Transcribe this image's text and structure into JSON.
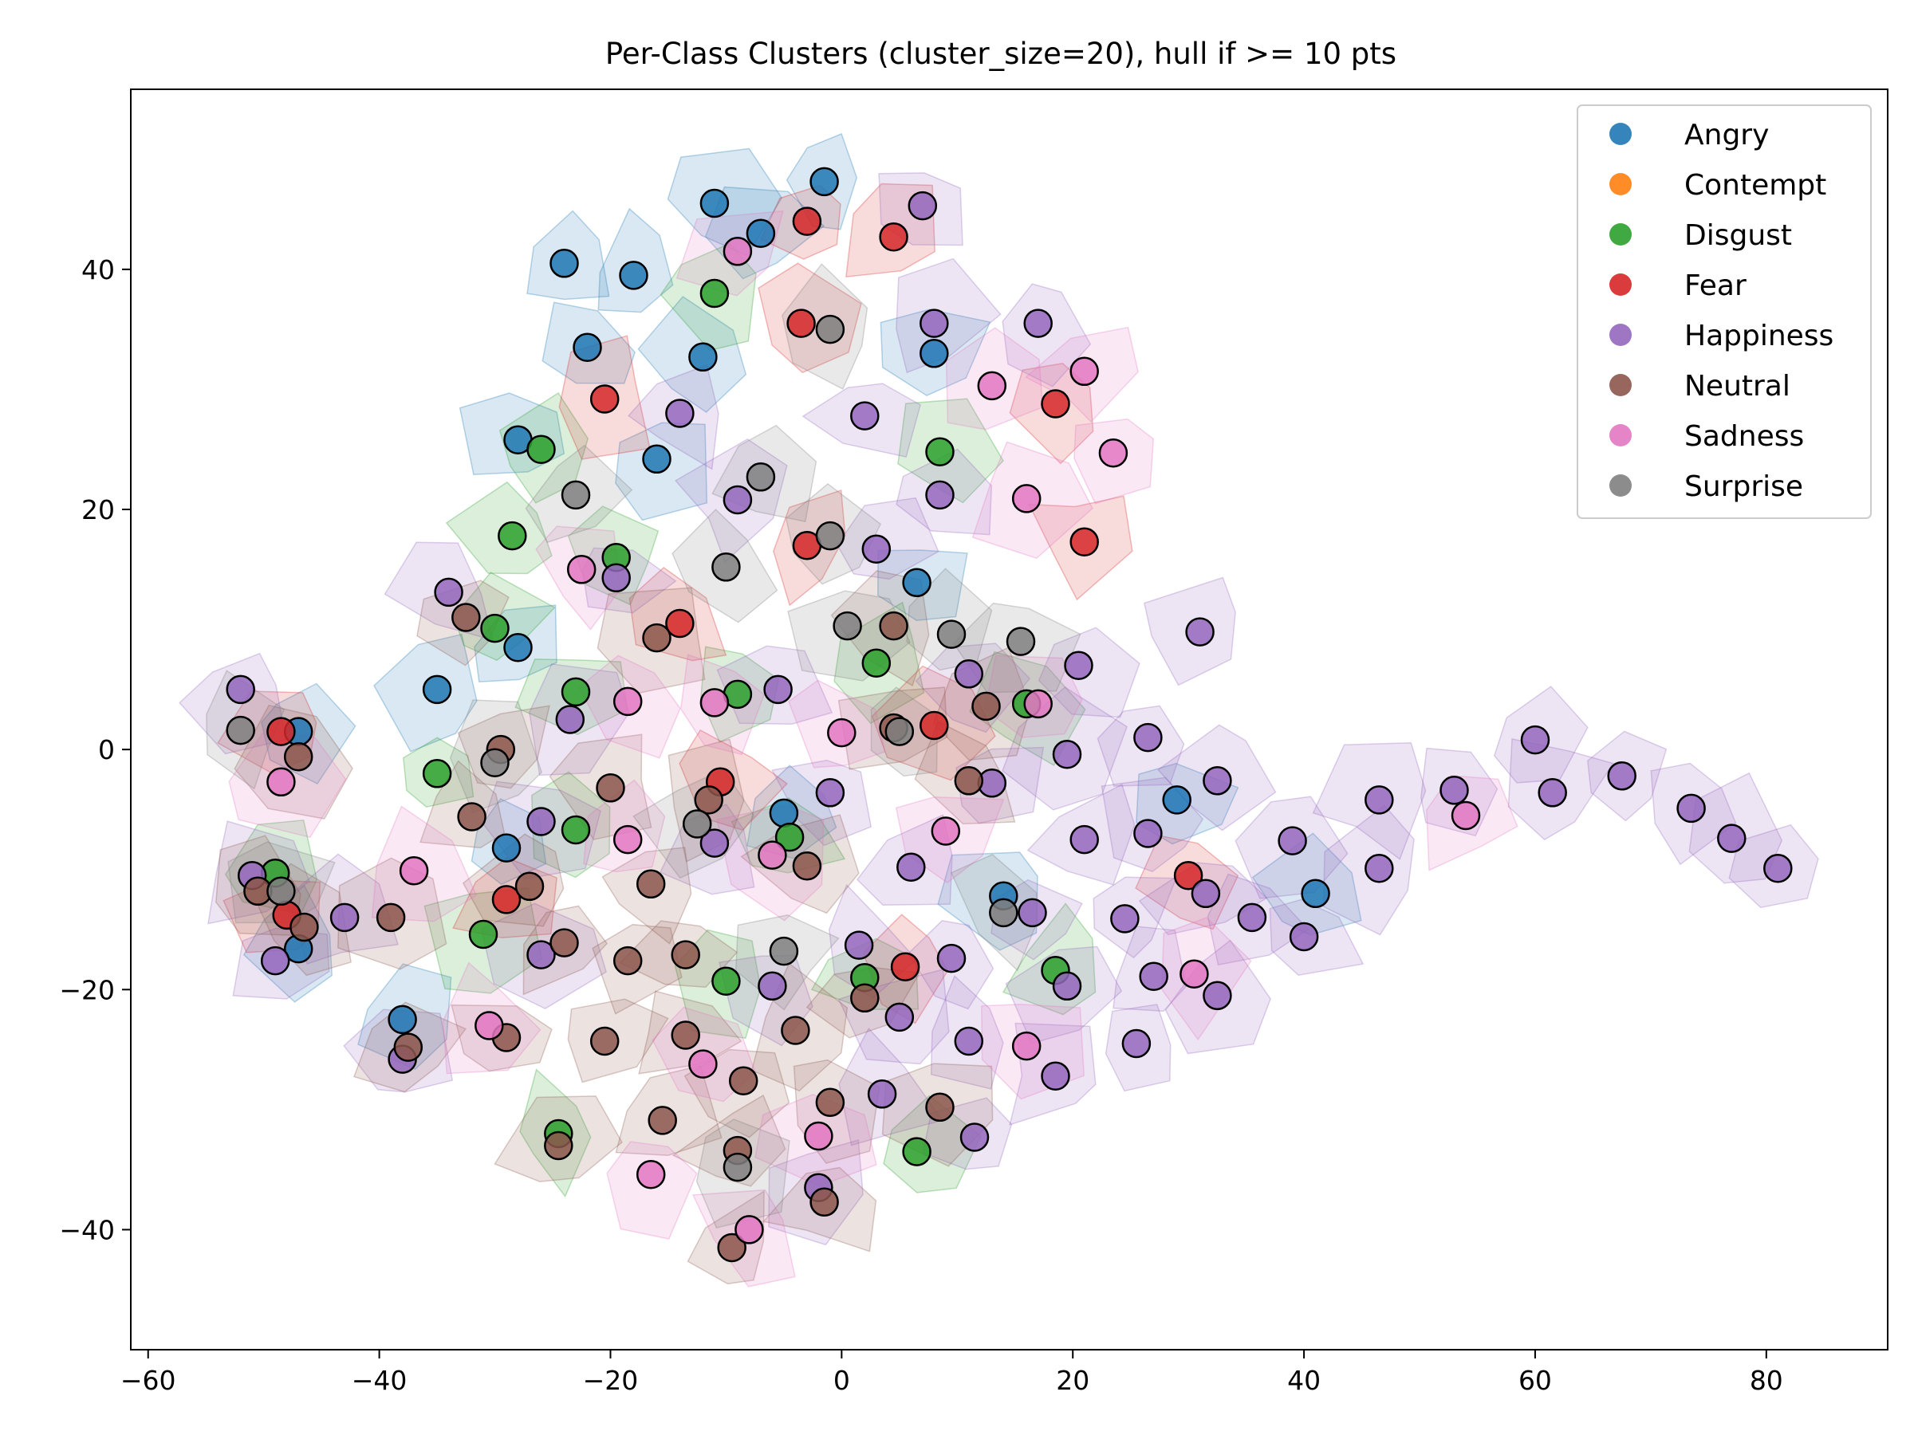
{
  "chart_data": {
    "type": "scatter",
    "title": "Per-Class Clusters (cluster_size=20), hull if >= 10 pts",
    "xlabel": "",
    "ylabel": "",
    "xlim": [
      -61.5,
      90.5
    ],
    "ylim": [
      -50,
      55
    ],
    "xticks": [
      -60,
      -40,
      -20,
      0,
      20,
      40,
      60,
      80
    ],
    "yticks": [
      -40,
      -20,
      0,
      20,
      40
    ],
    "grid": false,
    "legend_position": "top-right",
    "hulls_shown": true,
    "series": [
      {
        "name": "Angry",
        "color": "#1f77b4",
        "points": [
          [
            -24,
            40.5
          ],
          [
            -18,
            39.5
          ],
          [
            -22,
            33.5
          ],
          [
            -12,
            32.7
          ],
          [
            -28,
            25.8
          ],
          [
            -16,
            24.2
          ],
          [
            -28,
            8.5
          ],
          [
            -35,
            5
          ],
          [
            -47,
            1.5
          ],
          [
            -29,
            -8.2
          ],
          [
            -5,
            -5.3
          ],
          [
            -47,
            -16.6
          ],
          [
            -38,
            -22.5
          ],
          [
            -11,
            45.5
          ],
          [
            -7,
            43
          ],
          [
            -1.5,
            47.3
          ],
          [
            8,
            33
          ],
          [
            6.5,
            13.9
          ],
          [
            29,
            -4.2
          ],
          [
            14,
            -12.2
          ],
          [
            41,
            -12
          ]
        ]
      },
      {
        "name": "Contempt",
        "color": "#ff7f0e",
        "points": []
      },
      {
        "name": "Disgust",
        "color": "#2ca02c",
        "points": [
          [
            -11,
            38
          ],
          [
            -26,
            25
          ],
          [
            -28.5,
            17.8
          ],
          [
            -19.5,
            16
          ],
          [
            -30,
            10.1
          ],
          [
            -23,
            4.8
          ],
          [
            -9,
            4.6
          ],
          [
            -35,
            -2
          ],
          [
            -23,
            -6.7
          ],
          [
            -4.5,
            -7.3
          ],
          [
            -49,
            -10.3
          ],
          [
            -31,
            -15.4
          ],
          [
            -10,
            -19.3
          ],
          [
            2,
            -19
          ],
          [
            -24.5,
            -32
          ],
          [
            6.5,
            -33.5
          ],
          [
            8.5,
            24.8
          ],
          [
            3,
            7.2
          ],
          [
            16,
            3.8
          ],
          [
            18.5,
            -18.4
          ]
        ]
      },
      {
        "name": "Fear",
        "color": "#d62728",
        "points": [
          [
            -3,
            44
          ],
          [
            4.5,
            42.7
          ],
          [
            -3.5,
            35.5
          ],
          [
            -20.5,
            29.2
          ],
          [
            -3,
            17
          ],
          [
            -14,
            10.5
          ],
          [
            -48.5,
            1.5
          ],
          [
            -10.5,
            -2.7
          ],
          [
            -48,
            -13.8
          ],
          [
            -29,
            -12.5
          ],
          [
            5.5,
            -18.1
          ],
          [
            8,
            2
          ],
          [
            18.5,
            28.8
          ],
          [
            21,
            17.3
          ],
          [
            30,
            -10.5
          ]
        ]
      },
      {
        "name": "Happiness",
        "color": "#9467bd",
        "points": [
          [
            7,
            45.3
          ],
          [
            8,
            35.5
          ],
          [
            17,
            35.5
          ],
          [
            -14,
            28
          ],
          [
            2,
            27.8
          ],
          [
            -9,
            20.8
          ],
          [
            8.5,
            21.2
          ],
          [
            -34,
            13.1
          ],
          [
            -19.5,
            14.3
          ],
          [
            3,
            16.7
          ],
          [
            -52,
            5
          ],
          [
            -23.5,
            2.5
          ],
          [
            -5.5,
            5
          ],
          [
            11,
            6.3
          ],
          [
            20.5,
            7
          ],
          [
            31,
            9.8
          ],
          [
            -26,
            -6
          ],
          [
            -11,
            -7.8
          ],
          [
            -1,
            -3.6
          ],
          [
            13,
            -2.8
          ],
          [
            19.5,
            -0.4
          ],
          [
            26.5,
            1
          ],
          [
            32.5,
            -2.6
          ],
          [
            -51,
            -10.5
          ],
          [
            -43,
            -14
          ],
          [
            -49,
            -17.6
          ],
          [
            -26,
            -17.1
          ],
          [
            6,
            -9.8
          ],
          [
            9.5,
            -17.4
          ],
          [
            16.5,
            -13.6
          ],
          [
            21,
            -7.5
          ],
          [
            26.5,
            -7
          ],
          [
            31.5,
            -12
          ],
          [
            24.5,
            -14.1
          ],
          [
            35.5,
            -14
          ],
          [
            39,
            -7.6
          ],
          [
            46.5,
            -4.2
          ],
          [
            53,
            -3.4
          ],
          [
            60,
            0.8
          ],
          [
            61.5,
            -3.6
          ],
          [
            67.5,
            -2.2
          ],
          [
            73.5,
            -4.9
          ],
          [
            77,
            -7.4
          ],
          [
            81,
            -9.9
          ],
          [
            46.5,
            -9.9
          ],
          [
            40,
            -15.6
          ],
          [
            27,
            -18.9
          ],
          [
            32.5,
            -20.5
          ],
          [
            19.5,
            -19.7
          ],
          [
            25.5,
            -24.5
          ],
          [
            18.5,
            -27.2
          ],
          [
            11,
            -24.3
          ],
          [
            5,
            -22.3
          ],
          [
            -6,
            -19.7
          ],
          [
            1.5,
            -16.3
          ],
          [
            3.5,
            -28.7
          ],
          [
            11.5,
            -32.3
          ],
          [
            -38,
            -25.8
          ],
          [
            -2,
            -36.5
          ]
        ]
      },
      {
        "name": "Neutral",
        "color": "#8c564b",
        "points": [
          [
            -32.5,
            11
          ],
          [
            4.5,
            10.3
          ],
          [
            -16,
            9.3
          ],
          [
            -29.5,
            0
          ],
          [
            -47,
            -0.6
          ],
          [
            -20,
            -3.2
          ],
          [
            -11.5,
            -4.2
          ],
          [
            4.5,
            1.8
          ],
          [
            12.5,
            3.6
          ],
          [
            11,
            -2.6
          ],
          [
            -32,
            -5.6
          ],
          [
            -50.5,
            -11.8
          ],
          [
            -27,
            -11.4
          ],
          [
            -16.5,
            -11.2
          ],
          [
            -3,
            -9.7
          ],
          [
            -39,
            -14
          ],
          [
            -46.5,
            -14.8
          ],
          [
            -24,
            -16.1
          ],
          [
            -18.5,
            -17.6
          ],
          [
            -13.5,
            -17.1
          ],
          [
            -29,
            -24
          ],
          [
            -20.5,
            -24.3
          ],
          [
            -13.5,
            -23.8
          ],
          [
            -4,
            -23.4
          ],
          [
            2,
            -20.7
          ],
          [
            -8.5,
            -27.6
          ],
          [
            -1,
            -29.4
          ],
          [
            8.5,
            -29.8
          ],
          [
            -37.5,
            -24.8
          ],
          [
            -15.5,
            -30.9
          ],
          [
            -24.5,
            -33
          ],
          [
            -9,
            -33.4
          ],
          [
            -1.5,
            -37.7
          ],
          [
            -9.5,
            -41.5
          ]
        ]
      },
      {
        "name": "Sadness",
        "color": "#e377c2",
        "points": [
          [
            -9,
            41.5
          ],
          [
            13,
            30.3
          ],
          [
            21,
            31.5
          ],
          [
            23.5,
            24.7
          ],
          [
            16,
            20.9
          ],
          [
            -22.5,
            15
          ],
          [
            -18.5,
            4
          ],
          [
            -11,
            3.9
          ],
          [
            0,
            1.4
          ],
          [
            17,
            3.8
          ],
          [
            -48.5,
            -2.7
          ],
          [
            -18.5,
            -7.5
          ],
          [
            -37,
            -10.1
          ],
          [
            -6,
            -8.8
          ],
          [
            9,
            -6.8
          ],
          [
            30.5,
            -18.7
          ],
          [
            54,
            -5.5
          ],
          [
            -30.5,
            -23
          ],
          [
            -12,
            -26.2
          ],
          [
            16,
            -24.7
          ],
          [
            -2,
            -32.2
          ],
          [
            -16.5,
            -35.4
          ],
          [
            -8,
            -40
          ]
        ]
      },
      {
        "name": "Surprise",
        "color": "#7f7f7f",
        "points": [
          [
            -1,
            35
          ],
          [
            -7,
            22.7
          ],
          [
            -23,
            21.2
          ],
          [
            -1,
            17.8
          ],
          [
            -10,
            15.2
          ],
          [
            0.5,
            10.3
          ],
          [
            9.5,
            9.6
          ],
          [
            15.5,
            9
          ],
          [
            -52,
            1.6
          ],
          [
            5,
            1.5
          ],
          [
            -30,
            -1.1
          ],
          [
            -48.5,
            -11.8
          ],
          [
            -12.5,
            -6.2
          ],
          [
            -5,
            -16.8
          ],
          [
            14,
            -13.6
          ],
          [
            -9,
            -34.8
          ]
        ]
      }
    ]
  }
}
